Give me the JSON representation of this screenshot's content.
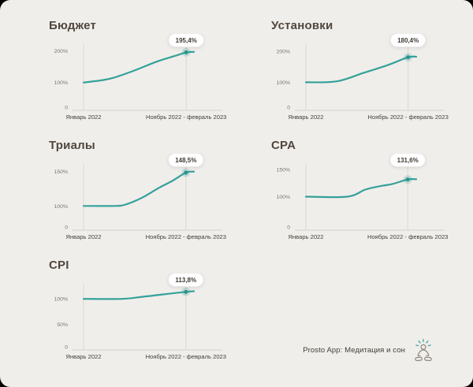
{
  "page": {
    "background": "#f0eeea",
    "frame_color": "#000000",
    "colors": {
      "line": "#35a19b",
      "marker_dot": "#2f948e",
      "marker_halo": "rgba(53,161,155,0.22)",
      "grid": "#dcd8d2",
      "axis": "#d6d2cc",
      "y_tick_text": "#7a756d",
      "x_label_text": "#45413b",
      "tooltip_bg": "#ffffff",
      "tooltip_border": "#eceae6",
      "tooltip_text": "#3f3b36",
      "title_text": "#4f473f"
    }
  },
  "footer": {
    "brand_label": "Prosto App: Медитация и сон",
    "icon": "meditation-icon"
  },
  "chart_data": [
    {
      "type": "line",
      "title": "Бюджет",
      "x_labels": [
        "Январь 2022",
        "Ноябрь 2022 - февраль 2023"
      ],
      "y_ticks": [
        {
          "label": "200%",
          "value": 200
        },
        {
          "label": "100%",
          "value": 100
        },
        {
          "label": "0",
          "value": 0
        }
      ],
      "y_anchors": [
        [
          0,
          0
        ],
        [
          100,
          0.43
        ],
        [
          200,
          0.92
        ]
      ],
      "series": {
        "x": [
          0,
          0.18,
          0.28,
          0.46,
          0.67,
          0.845,
          0.93,
          1
        ],
        "values": [
          100,
          108,
          116,
          138,
          167,
          186,
          195.4,
          197
        ]
      },
      "marker": {
        "x": 0.93,
        "value": 195.4
      },
      "marker_label": "195,4%",
      "grid": false,
      "legend": "none"
    },
    {
      "type": "line",
      "title": "Установки",
      "x_labels": [
        "Январь 2022",
        "Ноябрь 2022 - февраль 2023"
      ],
      "y_ticks": [
        {
          "label": "200%",
          "value": 200
        },
        {
          "label": "100%",
          "value": 100
        },
        {
          "label": "0",
          "value": 0
        }
      ],
      "y_anchors": [
        [
          0,
          0
        ],
        [
          100,
          0.434
        ],
        [
          200,
          0.916
        ]
      ],
      "series": {
        "x": [
          0,
          0.28,
          0.52,
          0.74,
          0.926,
          1
        ],
        "values": [
          100,
          103,
          130,
          155,
          180.4,
          182
        ]
      },
      "marker": {
        "x": 0.926,
        "value": 180.4
      },
      "marker_label": "180,4%",
      "grid": false,
      "legend": "none"
    },
    {
      "type": "line",
      "title": "Триалы",
      "x_labels": [
        "Январь 2022",
        "Ноябрь 2022 - февраль 2023"
      ],
      "y_ticks": [
        {
          "label": "150%",
          "value": 150
        },
        {
          "label": "100%",
          "value": 100
        },
        {
          "label": "0",
          "value": 0
        }
      ],
      "y_anchors": [
        [
          0,
          0
        ],
        [
          100,
          0.375
        ],
        [
          150,
          0.906
        ]
      ],
      "series": {
        "x": [
          0,
          0.28,
          0.38,
          0.53,
          0.68,
          0.81,
          0.927,
          1
        ],
        "values": [
          100,
          100,
          102,
          112,
          126,
          137,
          148.5,
          150
        ]
      },
      "marker": {
        "x": 0.927,
        "value": 148.5
      },
      "marker_label": "148,5%",
      "grid": false,
      "legend": "none"
    },
    {
      "type": "line",
      "title": "CPA",
      "x_labels": [
        "Январь 2022",
        "Ноябрь 2022 - февраль 2023"
      ],
      "y_ticks": [
        {
          "label": "150%",
          "value": 150
        },
        {
          "label": "100%",
          "value": 100
        },
        {
          "label": "0",
          "value": 0
        }
      ],
      "y_anchors": [
        [
          0,
          0
        ],
        [
          100,
          0.518
        ],
        [
          150,
          0.94
        ]
      ],
      "series": {
        "x": [
          0,
          0.376,
          0.54,
          0.69,
          0.78,
          0.923,
          1
        ],
        "values": [
          100,
          100,
          113,
          120,
          123,
          131.6,
          132
        ]
      },
      "marker": {
        "x": 0.923,
        "value": 131.6
      },
      "marker_label": "131,6%",
      "grid": false,
      "legend": "none"
    },
    {
      "type": "line",
      "title": "CPI",
      "x_labels": [
        "Январь 2022",
        "Ноябрь 2022 - февраль 2023"
      ],
      "y_ticks": [
        {
          "label": "100%",
          "value": 100
        },
        {
          "label": "50%",
          "value": 50
        },
        {
          "label": "0",
          "value": 0
        }
      ],
      "y_anchors": [
        [
          0,
          0
        ],
        [
          50,
          0.395
        ],
        [
          100,
          0.79
        ]
      ],
      "series": {
        "x": [
          0,
          0.35,
          0.53,
          0.73,
          0.927,
          1
        ],
        "values": [
          100,
          100,
          104,
          109,
          113.8,
          115
        ]
      },
      "marker": {
        "x": 0.927,
        "value": 113.8
      },
      "marker_label": "113,8%",
      "grid": false,
      "legend": "none"
    }
  ]
}
